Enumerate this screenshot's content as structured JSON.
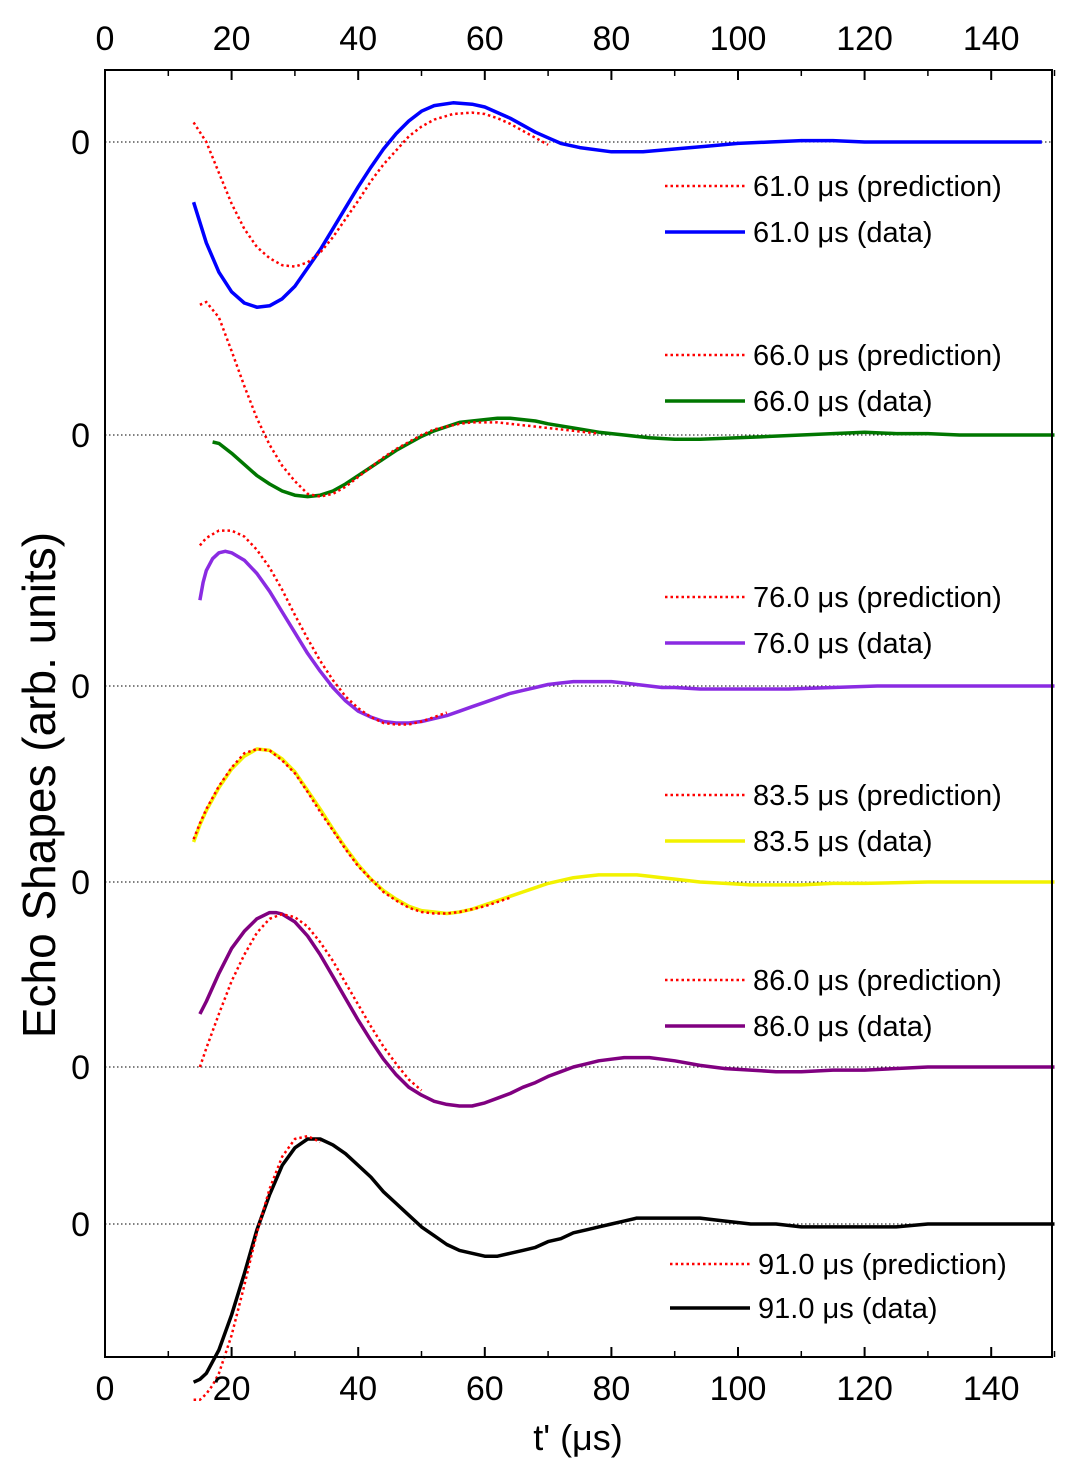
{
  "chart_data": {
    "type": "line",
    "title": "",
    "xlabel": "t' (μs)",
    "ylabel": "Echo Shapes (arb. units)",
    "xlim": [
      0,
      150
    ],
    "x_ticks": [
      "0",
      "20",
      "40",
      "60",
      "80",
      "100",
      "120",
      "140"
    ],
    "x_tick_values": [
      0,
      20,
      40,
      60,
      80,
      100,
      120,
      140
    ],
    "zero_label": "0",
    "grid": false,
    "legend_suffix_prediction": "(prediction)",
    "legend_suffix_data": "(data)",
    "panels": [
      {
        "label": "61.0 μs",
        "prediction_label": "61.0 μs (prediction)",
        "data_label": "61.0 μs (data)",
        "color": "#0000ff",
        "prediction_color": "#ff0000",
        "prediction": {
          "x": [
            14,
            16,
            18,
            20,
            22,
            24,
            26,
            28,
            30,
            32,
            34,
            36,
            38,
            40,
            42,
            44,
            46,
            48,
            50,
            52,
            55,
            58,
            60,
            62,
            64,
            66,
            68,
            70
          ],
          "y": [
            0.14,
            0.0,
            -0.22,
            -0.44,
            -0.62,
            -0.75,
            -0.83,
            -0.88,
            -0.89,
            -0.86,
            -0.79,
            -0.68,
            -0.55,
            -0.42,
            -0.28,
            -0.16,
            -0.06,
            0.04,
            0.11,
            0.16,
            0.2,
            0.21,
            0.2,
            0.17,
            0.13,
            0.08,
            0.03,
            -0.02
          ]
        },
        "data": {
          "x": [
            14,
            16,
            18,
            20,
            22,
            24,
            26,
            28,
            30,
            32,
            34,
            36,
            38,
            40,
            42,
            44,
            46,
            48,
            50,
            52,
            55,
            58,
            60,
            62,
            64,
            66,
            68,
            70,
            72,
            75,
            80,
            85,
            90,
            95,
            100,
            105,
            110,
            115,
            120,
            125,
            130,
            135,
            140,
            145,
            148
          ],
          "y": [
            -0.43,
            -0.72,
            -0.93,
            -1.07,
            -1.15,
            -1.18,
            -1.17,
            -1.12,
            -1.03,
            -0.9,
            -0.77,
            -0.62,
            -0.47,
            -0.32,
            -0.18,
            -0.05,
            0.06,
            0.15,
            0.22,
            0.26,
            0.28,
            0.27,
            0.25,
            0.21,
            0.17,
            0.12,
            0.07,
            0.03,
            -0.01,
            -0.04,
            -0.07,
            -0.07,
            -0.05,
            -0.03,
            -0.01,
            0.0,
            0.01,
            0.01,
            0.0,
            0.0,
            0.0,
            0.0,
            0.0,
            0.0,
            0.0
          ]
        }
      },
      {
        "label": "66.0 μs",
        "prediction_label": "66.0 μs (prediction)",
        "data_label": "66.0 μs (data)",
        "color": "#007700",
        "prediction_color": "#ff0000",
        "prediction": {
          "x": [
            15,
            16,
            18,
            20,
            22,
            24,
            26,
            28,
            30,
            32,
            34,
            36,
            38,
            40,
            42,
            44,
            46,
            48,
            50,
            52,
            54,
            56,
            58,
            60,
            62,
            64,
            66,
            68,
            70,
            74,
            78
          ],
          "y": [
            0.93,
            0.95,
            0.84,
            0.6,
            0.35,
            0.12,
            -0.07,
            -0.22,
            -0.33,
            -0.42,
            -0.44,
            -0.42,
            -0.37,
            -0.3,
            -0.23,
            -0.16,
            -0.1,
            -0.05,
            0.0,
            0.04,
            0.06,
            0.08,
            0.09,
            0.09,
            0.09,
            0.08,
            0.07,
            0.06,
            0.05,
            0.03,
            0.01
          ]
        },
        "data": {
          "x": [
            17,
            18,
            20,
            22,
            24,
            26,
            28,
            30,
            32,
            34,
            36,
            38,
            40,
            42,
            44,
            46,
            48,
            50,
            52,
            54,
            56,
            58,
            60,
            62,
            64,
            66,
            68,
            70,
            74,
            78,
            82,
            86,
            90,
            94,
            100,
            105,
            110,
            115,
            120,
            125,
            130,
            135,
            140,
            145,
            150
          ],
          "y": [
            -0.05,
            -0.06,
            -0.13,
            -0.21,
            -0.29,
            -0.35,
            -0.4,
            -0.43,
            -0.44,
            -0.43,
            -0.4,
            -0.35,
            -0.29,
            -0.23,
            -0.17,
            -0.11,
            -0.06,
            -0.01,
            0.03,
            0.06,
            0.09,
            0.1,
            0.11,
            0.12,
            0.12,
            0.11,
            0.1,
            0.08,
            0.05,
            0.02,
            0.0,
            -0.02,
            -0.03,
            -0.03,
            -0.02,
            -0.01,
            0.0,
            0.01,
            0.02,
            0.01,
            0.01,
            0.0,
            0.0,
            0.0,
            0.0
          ]
        }
      },
      {
        "label": "76.0 μs",
        "prediction_label": "76.0 μs (prediction)",
        "data_label": "76.0 μs (data)",
        "color": "#8a2be2",
        "prediction_color": "#ff0000",
        "prediction": {
          "x": [
            15,
            16,
            18,
            20,
            22,
            24,
            26,
            28,
            30,
            32,
            34,
            36,
            38,
            40,
            42,
            44,
            46,
            48,
            50,
            52,
            54
          ],
          "y": [
            0.95,
            1.0,
            1.05,
            1.05,
            1.01,
            0.92,
            0.8,
            0.65,
            0.48,
            0.32,
            0.17,
            0.04,
            -0.07,
            -0.15,
            -0.21,
            -0.25,
            -0.26,
            -0.26,
            -0.24,
            -0.21,
            -0.18
          ]
        },
        "data": {
          "x": [
            15,
            15.5,
            16,
            17,
            18,
            19,
            20,
            22,
            24,
            26,
            28,
            30,
            32,
            34,
            36,
            38,
            40,
            42,
            44,
            46,
            48,
            50,
            52,
            54,
            56,
            58,
            60,
            62,
            64,
            66,
            68,
            70,
            72,
            74,
            76,
            78,
            80,
            82,
            84,
            86,
            88,
            90,
            94,
            98,
            102,
            108,
            115,
            122,
            130,
            140,
            150
          ],
          "y": [
            0.58,
            0.7,
            0.78,
            0.86,
            0.9,
            0.91,
            0.9,
            0.85,
            0.76,
            0.64,
            0.5,
            0.36,
            0.22,
            0.1,
            -0.01,
            -0.1,
            -0.17,
            -0.21,
            -0.24,
            -0.25,
            -0.25,
            -0.24,
            -0.22,
            -0.2,
            -0.17,
            -0.14,
            -0.11,
            -0.08,
            -0.05,
            -0.03,
            -0.01,
            0.01,
            0.02,
            0.03,
            0.03,
            0.03,
            0.03,
            0.02,
            0.01,
            0.0,
            -0.01,
            -0.01,
            -0.02,
            -0.02,
            -0.02,
            -0.02,
            -0.01,
            0.0,
            0.0,
            0.0,
            0.0
          ]
        }
      },
      {
        "label": "83.5 μs",
        "prediction_label": "83.5 μs (prediction)",
        "data_label": "83.5 μs (data)",
        "color": "#f2f200",
        "prediction_color": "#ff0000",
        "prediction": {
          "x": [
            14,
            15,
            16,
            18,
            20,
            22,
            24,
            26,
            28,
            30,
            32,
            34,
            36,
            38,
            40,
            42,
            44,
            46,
            48,
            50,
            52,
            54,
            56,
            58,
            60,
            62,
            64
          ],
          "y": [
            0.3,
            0.41,
            0.51,
            0.67,
            0.8,
            0.9,
            0.93,
            0.92,
            0.85,
            0.76,
            0.63,
            0.49,
            0.36,
            0.23,
            0.11,
            0.02,
            -0.07,
            -0.13,
            -0.18,
            -0.21,
            -0.22,
            -0.22,
            -0.21,
            -0.19,
            -0.17,
            -0.14,
            -0.11
          ]
        },
        "data": {
          "x": [
            14,
            15,
            16,
            18,
            20,
            22,
            24,
            26,
            28,
            30,
            32,
            34,
            36,
            38,
            40,
            42,
            44,
            46,
            48,
            50,
            52,
            54,
            56,
            58,
            60,
            62,
            64,
            66,
            68,
            70,
            72,
            74,
            76,
            78,
            80,
            82,
            84,
            86,
            88,
            90,
            94,
            98,
            102,
            106,
            110,
            115,
            120,
            130,
            140,
            150
          ],
          "y": [
            0.28,
            0.4,
            0.5,
            0.66,
            0.79,
            0.88,
            0.93,
            0.92,
            0.86,
            0.77,
            0.64,
            0.51,
            0.37,
            0.24,
            0.12,
            0.02,
            -0.06,
            -0.12,
            -0.17,
            -0.2,
            -0.21,
            -0.22,
            -0.21,
            -0.19,
            -0.16,
            -0.13,
            -0.1,
            -0.07,
            -0.04,
            -0.01,
            0.01,
            0.03,
            0.04,
            0.05,
            0.05,
            0.05,
            0.05,
            0.04,
            0.03,
            0.02,
            0.0,
            -0.01,
            -0.02,
            -0.02,
            -0.02,
            -0.01,
            -0.01,
            0.0,
            0.0,
            0.0
          ]
        }
      },
      {
        "label": "86.0 μs",
        "prediction_label": "86.0 μs (prediction)",
        "data_label": "86.0 μs (data)",
        "color": "#800080",
        "prediction_color": "#ff0000",
        "prediction": {
          "x": [
            15,
            16,
            18,
            20,
            22,
            24,
            26,
            28,
            30,
            32,
            34,
            36,
            38,
            40,
            42,
            44,
            46,
            48,
            50
          ],
          "y": [
            0.0,
            0.12,
            0.34,
            0.55,
            0.72,
            0.86,
            0.95,
            0.98,
            0.96,
            0.9,
            0.8,
            0.68,
            0.54,
            0.4,
            0.26,
            0.13,
            0.02,
            -0.08,
            -0.15
          ]
        },
        "data": {
          "x": [
            15,
            16,
            18,
            20,
            22,
            24,
            26,
            27,
            28,
            30,
            32,
            34,
            36,
            38,
            40,
            42,
            44,
            46,
            48,
            50,
            52,
            54,
            56,
            58,
            60,
            62,
            64,
            66,
            68,
            70,
            72,
            74,
            76,
            78,
            80,
            82,
            84,
            86,
            88,
            90,
            94,
            98,
            102,
            106,
            110,
            115,
            120,
            130,
            140,
            150
          ],
          "y": [
            0.34,
            0.42,
            0.6,
            0.76,
            0.87,
            0.95,
            0.99,
            0.99,
            0.98,
            0.93,
            0.84,
            0.72,
            0.58,
            0.44,
            0.3,
            0.17,
            0.05,
            -0.05,
            -0.13,
            -0.18,
            -0.22,
            -0.24,
            -0.25,
            -0.25,
            -0.23,
            -0.2,
            -0.17,
            -0.13,
            -0.1,
            -0.06,
            -0.03,
            0.0,
            0.02,
            0.04,
            0.05,
            0.06,
            0.06,
            0.06,
            0.05,
            0.04,
            0.01,
            -0.01,
            -0.02,
            -0.03,
            -0.03,
            -0.02,
            -0.02,
            0.0,
            0.0,
            0.0
          ]
        }
      },
      {
        "label": "91.0 μs",
        "prediction_label": "91.0 μs (prediction)",
        "data_label": "91.0 μs (data)",
        "color": "#000000",
        "prediction_color": "#ff0000",
        "prediction": {
          "x": [
            14,
            15,
            16,
            17,
            18,
            20,
            22,
            24,
            26,
            28,
            30,
            32,
            34
          ],
          "y": [
            -0.6,
            -0.6,
            -0.58,
            -0.55,
            -0.51,
            -0.38,
            -0.21,
            -0.03,
            0.12,
            0.23,
            0.29,
            0.3,
            0.28
          ]
        },
        "data": {
          "x": [
            14,
            15,
            16,
            17,
            18,
            20,
            22,
            24,
            26,
            28,
            30,
            32,
            34,
            36,
            38,
            40,
            42,
            44,
            46,
            48,
            50,
            52,
            54,
            56,
            58,
            60,
            62,
            64,
            66,
            68,
            70,
            72,
            74,
            76,
            78,
            80,
            82,
            84,
            86,
            88,
            90,
            92,
            94,
            98,
            102,
            106,
            110,
            115,
            120,
            125,
            130,
            140,
            150
          ],
          "y": [
            -0.54,
            -0.53,
            -0.51,
            -0.47,
            -0.43,
            -0.31,
            -0.17,
            -0.02,
            0.1,
            0.2,
            0.26,
            0.29,
            0.29,
            0.27,
            0.24,
            0.2,
            0.16,
            0.11,
            0.07,
            0.03,
            -0.01,
            -0.04,
            -0.07,
            -0.09,
            -0.1,
            -0.11,
            -0.11,
            -0.1,
            -0.09,
            -0.08,
            -0.06,
            -0.05,
            -0.03,
            -0.02,
            -0.01,
            0.0,
            0.01,
            0.02,
            0.02,
            0.02,
            0.02,
            0.02,
            0.02,
            0.01,
            0.0,
            0.0,
            -0.01,
            -0.01,
            -0.01,
            -0.01,
            0.0,
            0.0,
            0.0
          ]
        }
      }
    ]
  }
}
